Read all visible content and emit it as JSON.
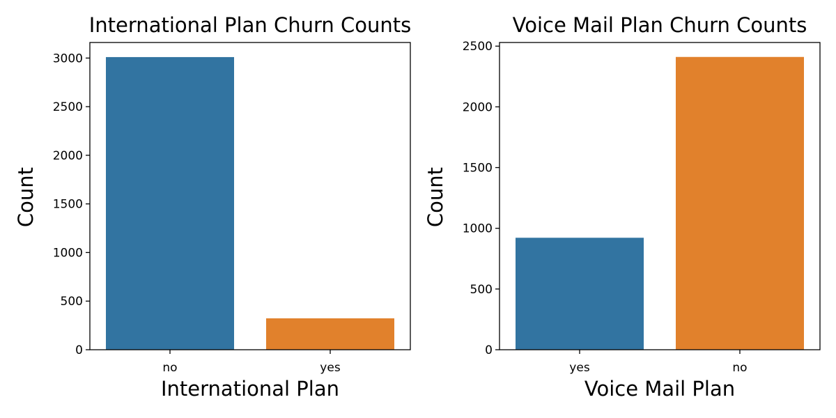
{
  "chart_data": [
    {
      "type": "bar",
      "title": "International Plan Churn Counts",
      "xlabel": "International Plan",
      "ylabel": "Count",
      "categories": [
        "no",
        "yes"
      ],
      "values": [
        3010,
        323
      ],
      "bar_colors": [
        "#3274a1",
        "#e1812c"
      ],
      "ylim": [
        0,
        3160
      ],
      "yticks": [
        0,
        500,
        1000,
        1500,
        2000,
        2500,
        3000
      ],
      "ytick_labels": [
        "0",
        "500",
        "1000",
        "1500",
        "2000",
        "2500",
        "3000"
      ],
      "grid": false,
      "legend": "none"
    },
    {
      "type": "bar",
      "title": "Voice Mail Plan Churn Counts",
      "xlabel": "Voice Mail Plan",
      "ylabel": "Count",
      "categories": [
        "yes",
        "no"
      ],
      "values": [
        922,
        2411
      ],
      "bar_colors": [
        "#3274a1",
        "#e1812c"
      ],
      "ylim": [
        0,
        2530
      ],
      "yticks": [
        0,
        500,
        1000,
        1500,
        2000,
        2500
      ],
      "ytick_labels": [
        "0",
        "500",
        "1000",
        "1500",
        "2000",
        "2500"
      ],
      "grid": false,
      "legend": "none"
    }
  ]
}
